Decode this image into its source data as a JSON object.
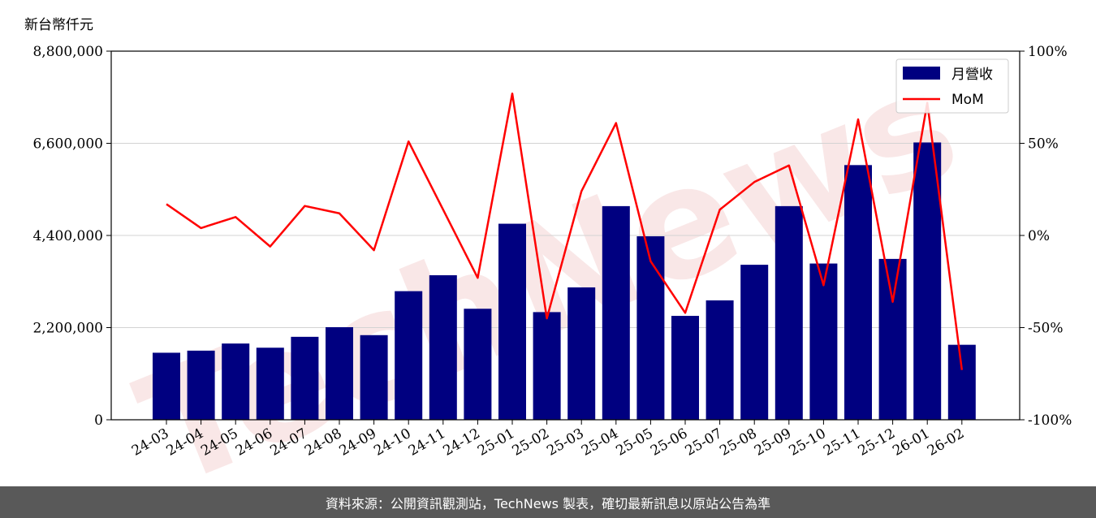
{
  "chart_data": {
    "type": "bar+line",
    "unit_label": "新台幣仟元",
    "categories": [
      "24-03",
      "24-04",
      "24-05",
      "24-06",
      "24-07",
      "24-08",
      "24-09",
      "24-10",
      "24-11",
      "24-12",
      "25-01",
      "25-02",
      "25-03",
      "25-04",
      "25-05",
      "25-06",
      "25-07",
      "25-08",
      "25-09",
      "25-10",
      "25-11",
      "25-12",
      "26-01",
      "26-02"
    ],
    "series": [
      {
        "name": "月營收",
        "kind": "bar",
        "axis": "left",
        "color": "#000080",
        "values": [
          1600000,
          1650000,
          1820000,
          1720000,
          1980000,
          2210000,
          2020000,
          3070000,
          3450000,
          2650000,
          4680000,
          2570000,
          3160000,
          5100000,
          4380000,
          2480000,
          2850000,
          3700000,
          5100000,
          3730000,
          6080000,
          3840000,
          6620000,
          1790000
        ]
      },
      {
        "name": "MoM",
        "kind": "line",
        "axis": "right",
        "color": "#ff0000",
        "values": [
          17,
          4,
          10,
          -6,
          16,
          12,
          -8,
          51,
          14,
          -23,
          77,
          -45,
          24,
          61,
          -14,
          -42,
          14,
          29,
          38,
          -27,
          63,
          -36,
          72,
          -73
        ]
      }
    ],
    "y_left": {
      "min": 0,
      "max": 8800000,
      "ticks": [
        0,
        2200000,
        4400000,
        6600000,
        8800000
      ],
      "tick_labels": [
        "0",
        "2,200,000",
        "4,400,000",
        "6,600,000",
        "8,800,000"
      ]
    },
    "y_right": {
      "min": -100,
      "max": 100,
      "ticks": [
        -100,
        -50,
        0,
        50,
        100
      ],
      "tick_labels": [
        "-100%",
        "-50%",
        "0%",
        "50%",
        "100%"
      ]
    },
    "grid": "horizontal",
    "legend": "top-right",
    "watermark": "TechNews"
  },
  "footer": {
    "text": "資料來源：公開資訊觀測站，TechNews 製表，確切最新訊息以原站公告為準"
  }
}
